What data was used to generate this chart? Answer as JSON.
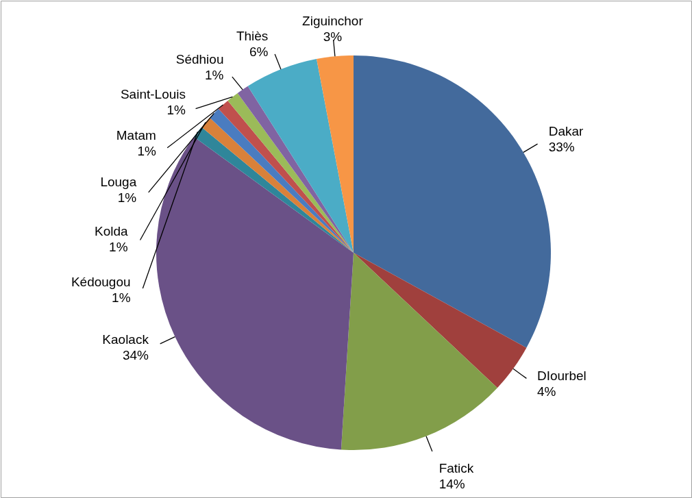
{
  "chart_data": {
    "type": "pie",
    "categories": [
      "Dakar",
      "DIourbel",
      "Fatick",
      "Kaolack",
      "Kédougou",
      "Kolda",
      "Louga",
      "Matam",
      "Saint-Louis",
      "Sédhiou",
      "Thiès",
      "Ziguinchor"
    ],
    "values": [
      33,
      4,
      14,
      34,
      1,
      1,
      1,
      1,
      1,
      1,
      6,
      3
    ],
    "value_labels": [
      "33%",
      "4%",
      "14%",
      "34%",
      "1%",
      "1%",
      "1%",
      "1%",
      "1%",
      "1%",
      "6%",
      "3%"
    ],
    "colors": [
      "#436a9c",
      "#a0403d",
      "#829e4a",
      "#6a5187",
      "#2f869a",
      "#d9813a",
      "#4a7cc0",
      "#c0504d",
      "#9bbb59",
      "#8064a2",
      "#4bacc6",
      "#f79646"
    ]
  }
}
